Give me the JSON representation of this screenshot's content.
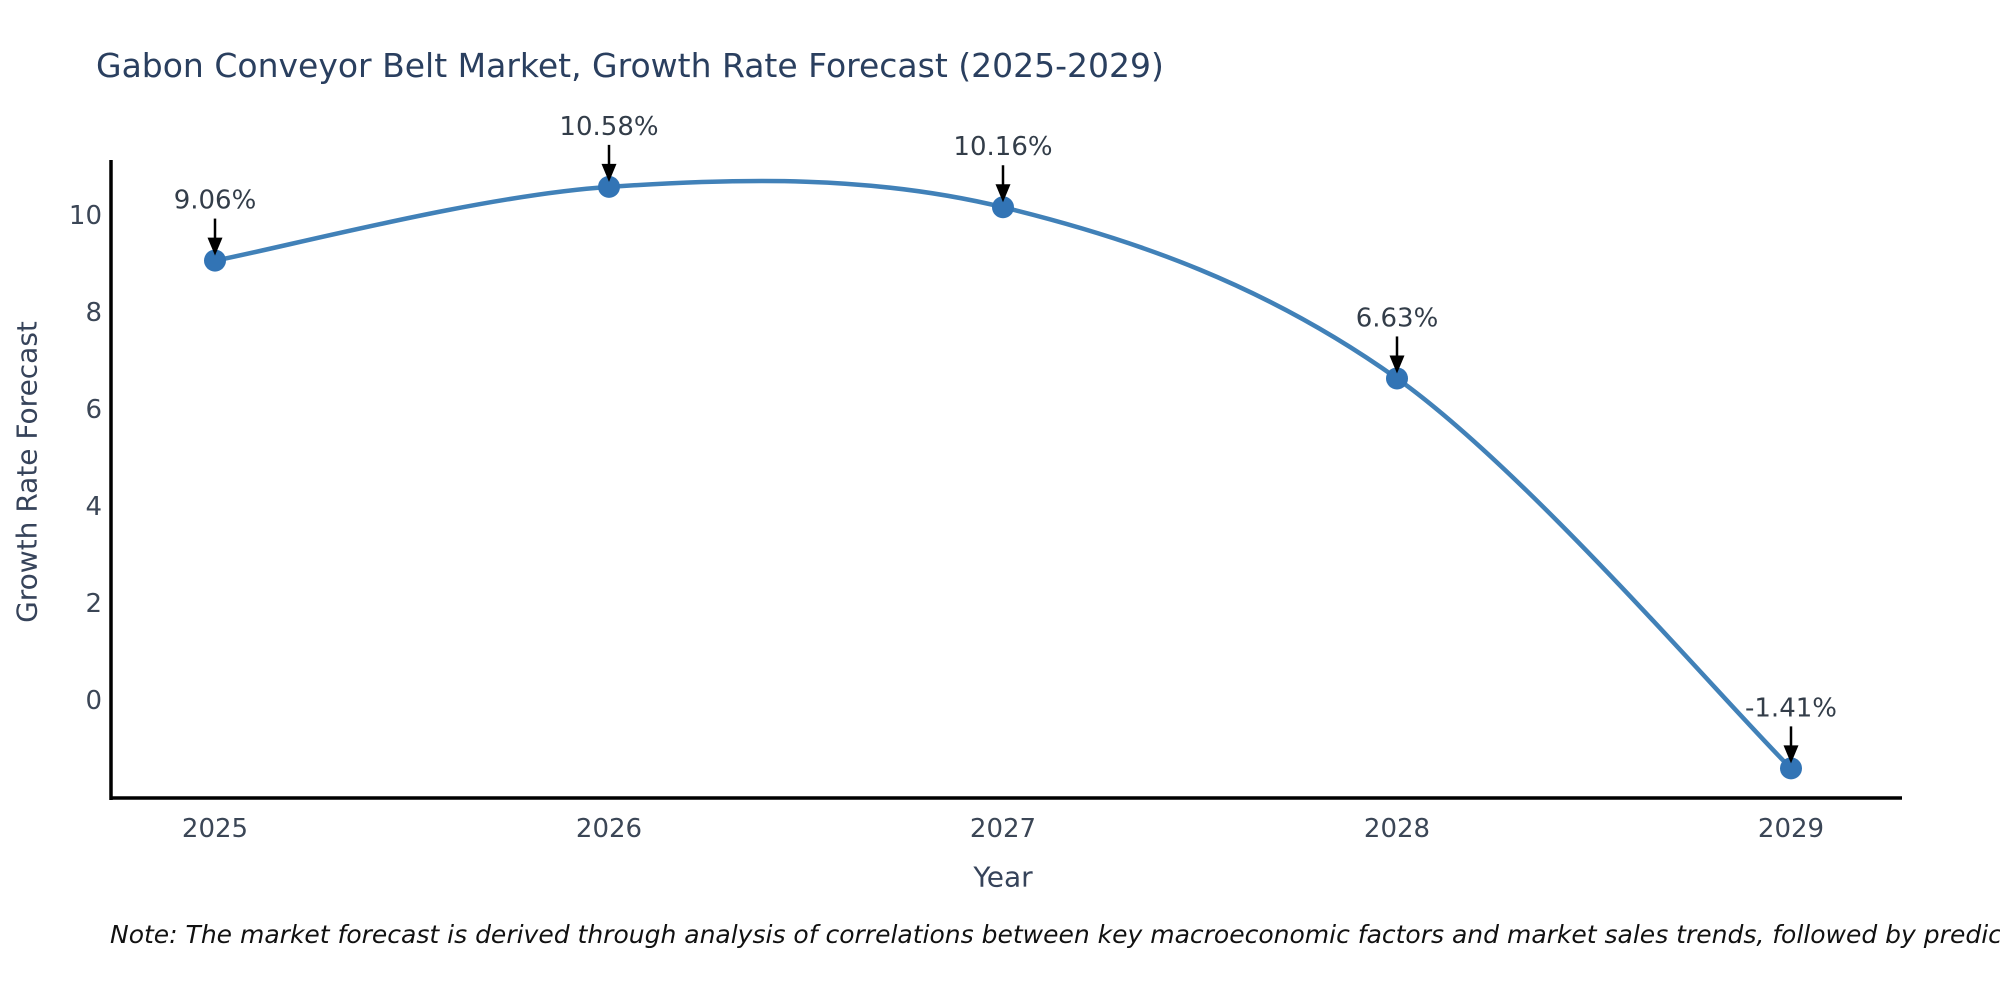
{
  "chart_data": {
    "type": "line",
    "title": "Gabon Conveyor Belt Market, Growth Rate Forecast (2025-2029)",
    "xlabel": "Year",
    "ylabel": "Growth Rate Forecast",
    "note": "Note: The market forecast is derived through analysis of correlations between key macroeconomic factors and market sales trends, followed by predictive modeling to project future sales",
    "x": [
      2025,
      2026,
      2027,
      2028,
      2029
    ],
    "series": [
      {
        "name": "Growth Rate Forecast",
        "values": [
          9.06,
          10.58,
          10.16,
          6.63,
          -1.41
        ]
      }
    ],
    "point_labels": [
      "9.06%",
      "10.58%",
      "10.16%",
      "6.63%",
      "-1.41%"
    ],
    "xticks": [
      "2025",
      "2026",
      "2027",
      "2028",
      "2029"
    ],
    "yticks": [
      0,
      2,
      4,
      6,
      8,
      10
    ],
    "ylim": [
      -2.1,
      11.2
    ],
    "xlim": [
      2024.73,
      2029.29
    ],
    "grid": false,
    "legend": false,
    "line_shape": "spline",
    "markers": true,
    "annotation_style": "black-arrow-pointing-down-to-marker",
    "colors": {
      "line": "#4181b8",
      "marker": "#3274b5",
      "title_text": "#2a3f5f",
      "axis_text": "#3b4656",
      "annotation_text": "#333d49",
      "arrow": "#000000",
      "axis_line": "#000000",
      "note_text": "#111111",
      "background": "#ffffff"
    }
  }
}
